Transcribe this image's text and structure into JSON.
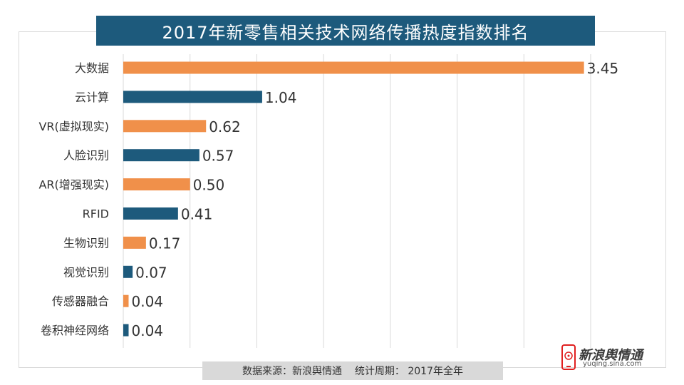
{
  "title": "2017年新零售相关技术网络传播热度指数排名",
  "footer": {
    "source_label": "数据来源：新浪舆情通",
    "period_label": "统计周期：",
    "period_value": "2017年全年"
  },
  "logo": {
    "name": "新浪舆情通",
    "url": "yuqing.sina.com",
    "icon": "phone-logo-icon"
  },
  "colors": {
    "title_bg": "#1d5a7c",
    "orange": "#f0904a",
    "blue": "#1d5a7c",
    "footer_bg": "#d9d9d9",
    "logo_red": "#e02020"
  },
  "chart_data": {
    "type": "bar",
    "orientation": "horizontal",
    "categories": [
      "大数据",
      "云计算",
      "VR(虚拟现实)",
      "人脸识别",
      "AR(增强现实)",
      "RFID",
      "生物识别",
      "视觉识别",
      "传感器融合",
      "卷积神经网络"
    ],
    "values": [
      3.45,
      1.04,
      0.62,
      0.57,
      0.5,
      0.41,
      0.17,
      0.07,
      0.04,
      0.04
    ],
    "value_labels": [
      "3.45",
      "1.04",
      "0.62",
      "0.57",
      "0.50",
      "0.41",
      "0.17",
      "0.07",
      "0.04",
      "0.04"
    ],
    "bar_colors": [
      "#f0904a",
      "#1d5a7c",
      "#f0904a",
      "#1d5a7c",
      "#f0904a",
      "#1d5a7c",
      "#f0904a",
      "#1d5a7c",
      "#f0904a",
      "#1d5a7c"
    ],
    "xlim": [
      0,
      3.5
    ],
    "gridlines_at": [
      0,
      0.5,
      1.0,
      1.5,
      2.0,
      2.5,
      3.0,
      3.5
    ],
    "grid": true,
    "legend": false
  }
}
